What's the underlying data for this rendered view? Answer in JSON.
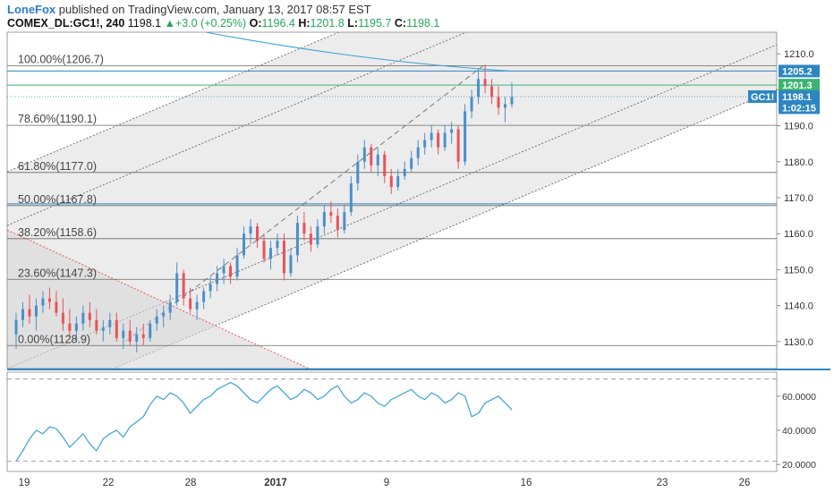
{
  "header": {
    "author": "LoneFox",
    "published_text": " published on TradingView.com, January 13, 2017 08:57 EST",
    "symbol": "COMEX_DL:GC1!, 240",
    "last": "1198.1",
    "up_arrow": "▲",
    "change": "+3.0 (+0.25%)",
    "o_label": "O:",
    "o_value": "1196.4",
    "h_label": "H:",
    "h_value": "1201.8",
    "l_label": "L:",
    "l_value": "1195.7",
    "c_label": "C:",
    "c_value": "1198.1"
  },
  "colors": {
    "bull": "#4a90c8",
    "bear": "#e8525a",
    "channel_fill": "#e6e6e6",
    "hline_blue": "#2e86c1",
    "hline_green": "#3cb371",
    "rsi": "#3aa0d5",
    "red_trend": "#e8525a",
    "fib": "#666666"
  },
  "chart_data": [
    {
      "type": "candlestick",
      "ylim": [
        1122.5,
        1216
      ],
      "y_ticks": [
        "1210.0",
        "1200.0",
        "1190.0",
        "1180.0",
        "1170.0",
        "1160.0",
        "1150.0",
        "1140.0",
        "1130.0"
      ],
      "y_tick_values": [
        1210,
        1200,
        1190,
        1180,
        1170,
        1160,
        1150,
        1140,
        1130
      ],
      "x_tick_labels": [
        "19",
        "22",
        "28",
        "2017",
        "9",
        "16",
        "23",
        "26"
      ],
      "fib_levels": [
        {
          "label": "100.00%(1206.7)",
          "value": 1206.7
        },
        {
          "label": "78.60%(1190.1)",
          "value": 1190.1
        },
        {
          "label": "61.80%(1177.0)",
          "value": 1177.0
        },
        {
          "label": "50.00%(1167.8)",
          "value": 1167.8
        },
        {
          "label": "38.20%(1158.6)",
          "value": 1158.6
        },
        {
          "label": "23.60%(1147.3)",
          "value": 1147.3
        },
        {
          "label": "0.00%(1128.9)",
          "value": 1128.9
        }
      ],
      "horizontal_lines": [
        {
          "value": 1205.2,
          "color": "blue"
        },
        {
          "value": 1201.3,
          "color": "green"
        },
        {
          "value": 1168.3,
          "color": "blue"
        }
      ],
      "price_labels": [
        {
          "text": "1205.2",
          "value": 1205.2,
          "color": "#2e86c1"
        },
        {
          "text": "1201.3",
          "value": 1201.3,
          "color": "#3cb371"
        },
        {
          "text": "1198.1",
          "value": 1198.1,
          "color": "#2e86c1",
          "tag": "GC1!"
        },
        {
          "text": "1:02:15",
          "value": 1195.0,
          "color": "#2e86c1"
        }
      ],
      "candles": [
        [
          1132,
          1138,
          1128,
          1136
        ],
        [
          1136,
          1141,
          1134,
          1139
        ],
        [
          1139,
          1143,
          1135,
          1137
        ],
        [
          1137,
          1142,
          1133,
          1140
        ],
        [
          1140,
          1144,
          1138,
          1142
        ],
        [
          1142,
          1145,
          1139,
          1141
        ],
        [
          1141,
          1144,
          1137,
          1138
        ],
        [
          1138,
          1142,
          1133,
          1135
        ],
        [
          1135,
          1139,
          1131,
          1133
        ],
        [
          1133,
          1137,
          1130,
          1135
        ],
        [
          1135,
          1140,
          1133,
          1138
        ],
        [
          1138,
          1141,
          1134,
          1136
        ],
        [
          1136,
          1139,
          1132,
          1133
        ],
        [
          1133,
          1136,
          1130,
          1134
        ],
        [
          1134,
          1138,
          1132,
          1136
        ],
        [
          1136,
          1138,
          1130,
          1131
        ],
        [
          1131,
          1135,
          1128,
          1133
        ],
        [
          1133,
          1136,
          1129,
          1130
        ],
        [
          1130,
          1134,
          1127,
          1132
        ],
        [
          1132,
          1135,
          1129,
          1131
        ],
        [
          1131,
          1136,
          1130,
          1135
        ],
        [
          1135,
          1139,
          1133,
          1137
        ],
        [
          1137,
          1140,
          1134,
          1138
        ],
        [
          1138,
          1143,
          1136,
          1141
        ],
        [
          1141,
          1152,
          1140,
          1149
        ],
        [
          1149,
          1150,
          1140,
          1142
        ],
        [
          1142,
          1145,
          1138,
          1139
        ],
        [
          1139,
          1143,
          1136,
          1141
        ],
        [
          1141,
          1145,
          1139,
          1144
        ],
        [
          1144,
          1148,
          1142,
          1146
        ],
        [
          1146,
          1151,
          1144,
          1149
        ],
        [
          1149,
          1153,
          1146,
          1151
        ],
        [
          1151,
          1152,
          1146,
          1148
        ],
        [
          1148,
          1156,
          1147,
          1154
        ],
        [
          1154,
          1162,
          1153,
          1160
        ],
        [
          1160,
          1164,
          1157,
          1162
        ],
        [
          1162,
          1163,
          1156,
          1158
        ],
        [
          1158,
          1160,
          1152,
          1153
        ],
        [
          1153,
          1158,
          1150,
          1156
        ],
        [
          1156,
          1160,
          1154,
          1158
        ],
        [
          1158,
          1160,
          1147,
          1149
        ],
        [
          1149,
          1156,
          1148,
          1154
        ],
        [
          1154,
          1165,
          1152,
          1163
        ],
        [
          1163,
          1166,
          1158,
          1160
        ],
        [
          1160,
          1162,
          1155,
          1157
        ],
        [
          1157,
          1164,
          1156,
          1162
        ],
        [
          1162,
          1168,
          1160,
          1166
        ],
        [
          1166,
          1169,
          1163,
          1165
        ],
        [
          1165,
          1167,
          1159,
          1161
        ],
        [
          1161,
          1168,
          1160,
          1166
        ],
        [
          1166,
          1176,
          1165,
          1174
        ],
        [
          1174,
          1182,
          1172,
          1180
        ],
        [
          1180,
          1186,
          1178,
          1184
        ],
        [
          1184,
          1185,
          1177,
          1179
        ],
        [
          1179,
          1184,
          1176,
          1182
        ],
        [
          1182,
          1183,
          1174,
          1176
        ],
        [
          1176,
          1178,
          1171,
          1173
        ],
        [
          1173,
          1178,
          1172,
          1176
        ],
        [
          1176,
          1180,
          1175,
          1178
        ],
        [
          1178,
          1183,
          1177,
          1181
        ],
        [
          1181,
          1186,
          1179,
          1184
        ],
        [
          1184,
          1188,
          1182,
          1186
        ],
        [
          1186,
          1190,
          1184,
          1188
        ],
        [
          1188,
          1189,
          1182,
          1184
        ],
        [
          1184,
          1190,
          1183,
          1188
        ],
        [
          1188,
          1191,
          1185,
          1189
        ],
        [
          1189,
          1190,
          1178,
          1180
        ],
        [
          1180,
          1196,
          1179,
          1194
        ],
        [
          1194,
          1200,
          1192,
          1198
        ],
        [
          1198,
          1206,
          1196,
          1203
        ],
        [
          1203,
          1207,
          1199,
          1201
        ],
        [
          1201,
          1203,
          1196,
          1198
        ],
        [
          1198,
          1201,
          1193,
          1195
        ],
        [
          1195,
          1198,
          1191,
          1196
        ],
        [
          1196,
          1202,
          1195,
          1198
        ]
      ]
    },
    {
      "type": "line",
      "name": "RSI",
      "ylim": [
        18,
        72
      ],
      "y_ticks": [
        "60.0000",
        "40.0000",
        "20.0000"
      ],
      "y_tick_values": [
        60,
        40,
        20
      ],
      "levels": [
        70,
        22
      ],
      "values": [
        22,
        28,
        35,
        40,
        38,
        42,
        41,
        36,
        30,
        34,
        38,
        32,
        28,
        35,
        38,
        40,
        36,
        42,
        45,
        48,
        55,
        60,
        58,
        62,
        60,
        56,
        50,
        54,
        58,
        60,
        64,
        66,
        68,
        66,
        62,
        58,
        56,
        60,
        64,
        66,
        62,
        58,
        60,
        64,
        62,
        58,
        60,
        64,
        66,
        60,
        56,
        58,
        62,
        60,
        56,
        54,
        58,
        60,
        62,
        64,
        60,
        58,
        62,
        60,
        56,
        58,
        62,
        60,
        48,
        50,
        56,
        58,
        60,
        56,
        52
      ]
    }
  ]
}
